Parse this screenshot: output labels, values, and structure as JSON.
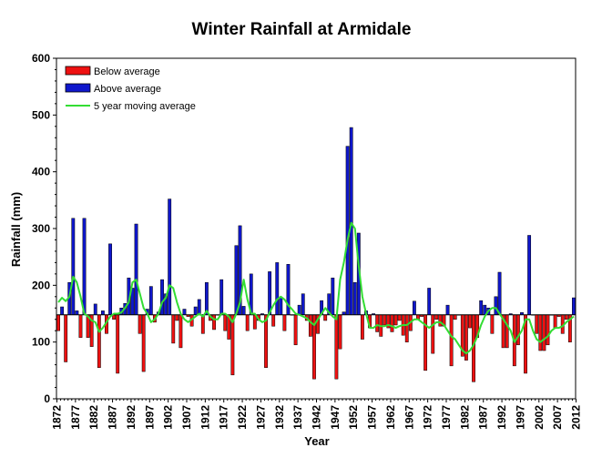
{
  "chart_data": {
    "type": "bar",
    "title": "Winter Rainfall at Armidale",
    "xlabel": "Year",
    "ylabel": "Rainfall (mm)",
    "ylim": [
      0,
      600
    ],
    "yticks": [
      0,
      100,
      200,
      300,
      400,
      500,
      600
    ],
    "xlim": [
      1872,
      2012
    ],
    "xticks": [
      1872,
      1877,
      1882,
      1887,
      1892,
      1897,
      1902,
      1907,
      1912,
      1917,
      1922,
      1927,
      1932,
      1937,
      1942,
      1947,
      1952,
      1957,
      1962,
      1967,
      1972,
      1977,
      1982,
      1987,
      1992,
      1997,
      2002,
      2007,
      2012
    ],
    "baseline": 148,
    "legend_position": "top-left",
    "series": [
      {
        "name": "Below average",
        "color": "#ee1111",
        "kind": "bar"
      },
      {
        "name": "Above average",
        "color": "#0f17cc",
        "kind": "bar"
      },
      {
        "name": "5 year moving average",
        "color": "#33dd33",
        "kind": "line"
      }
    ],
    "years": [
      1872,
      1873,
      1874,
      1875,
      1876,
      1877,
      1878,
      1879,
      1880,
      1881,
      1882,
      1883,
      1884,
      1885,
      1886,
      1887,
      1888,
      1889,
      1890,
      1891,
      1892,
      1893,
      1894,
      1895,
      1896,
      1897,
      1898,
      1899,
      1900,
      1901,
      1902,
      1903,
      1904,
      1905,
      1906,
      1907,
      1908,
      1909,
      1910,
      1911,
      1912,
      1913,
      1914,
      1915,
      1916,
      1917,
      1918,
      1919,
      1920,
      1921,
      1922,
      1923,
      1924,
      1925,
      1926,
      1927,
      1928,
      1929,
      1930,
      1931,
      1932,
      1933,
      1934,
      1935,
      1936,
      1937,
      1938,
      1939,
      1940,
      1941,
      1942,
      1943,
      1944,
      1945,
      1946,
      1947,
      1948,
      1949,
      1950,
      1951,
      1952,
      1953,
      1954,
      1955,
      1956,
      1957,
      1958,
      1959,
      1960,
      1961,
      1962,
      1963,
      1964,
      1965,
      1966,
      1967,
      1968,
      1969,
      1970,
      1971,
      1972,
      1973,
      1974,
      1975,
      1976,
      1977,
      1978,
      1979,
      1980,
      1981,
      1982,
      1983,
      1984,
      1985,
      1986,
      1987,
      1988,
      1989,
      1990,
      1991,
      1992,
      1993,
      1994,
      1995,
      1996,
      1997,
      1998,
      1999,
      2000,
      2001,
      2002,
      2003,
      2004,
      2005,
      2006,
      2007,
      2008,
      2009,
      2010,
      2011
    ],
    "rainfall": [
      120,
      162,
      65,
      205,
      318,
      155,
      108,
      318,
      108,
      92,
      167,
      55,
      155,
      115,
      273,
      140,
      45,
      160,
      168,
      213,
      195,
      308,
      115,
      48,
      158,
      198,
      135,
      153,
      210,
      185,
      352,
      98,
      138,
      90,
      158,
      145,
      128,
      162,
      175,
      115,
      205,
      138,
      122,
      148,
      210,
      120,
      105,
      42,
      270,
      305,
      163,
      120,
      220,
      123,
      138,
      150,
      55,
      224,
      128,
      240,
      178,
      120,
      237,
      148,
      95,
      165,
      185,
      138,
      110,
      35,
      115,
      173,
      138,
      185,
      213,
      35,
      88,
      153,
      445,
      478,
      205,
      292,
      105,
      155,
      125,
      150,
      118,
      110,
      130,
      125,
      118,
      130,
      138,
      112,
      100,
      120,
      172,
      140,
      145,
      50,
      195,
      80,
      140,
      128,
      128,
      165,
      58,
      140,
      148,
      75,
      68,
      125,
      30,
      108,
      173,
      165,
      160,
      115,
      180,
      223,
      90,
      90,
      150,
      58,
      95,
      152,
      45,
      288,
      148,
      115,
      85,
      85,
      95,
      148,
      125,
      145,
      115,
      140,
      100,
      178
    ],
    "moving_average": [
      170,
      178,
      172,
      180,
      215,
      205,
      180,
      150,
      145,
      138,
      135,
      118,
      125,
      135,
      145,
      150,
      150,
      152,
      160,
      170,
      205,
      210,
      185,
      160,
      150,
      135,
      140,
      150,
      170,
      178,
      200,
      195,
      170,
      150,
      140,
      135,
      140,
      145,
      150,
      145,
      155,
      145,
      140,
      140,
      150,
      150,
      145,
      135,
      150,
      170,
      210,
      175,
      150,
      150,
      140,
      135,
      138,
      152,
      165,
      175,
      180,
      175,
      165,
      158,
      150,
      148,
      145,
      142,
      135,
      130,
      140,
      150,
      160,
      152,
      145,
      140,
      210,
      240,
      280,
      310,
      300,
      235,
      180,
      150,
      125,
      125,
      130,
      128,
      128,
      130,
      128,
      125,
      128,
      130,
      130,
      135,
      140,
      140,
      135,
      130,
      125,
      130,
      135,
      135,
      130,
      120,
      110,
      105,
      95,
      85,
      80,
      85,
      95,
      110,
      130,
      145,
      155,
      160,
      160,
      150,
      140,
      130,
      120,
      100,
      110,
      120,
      140,
      140,
      120,
      105,
      100,
      105,
      110,
      120,
      125,
      125,
      128,
      135,
      140,
      145
    ]
  }
}
